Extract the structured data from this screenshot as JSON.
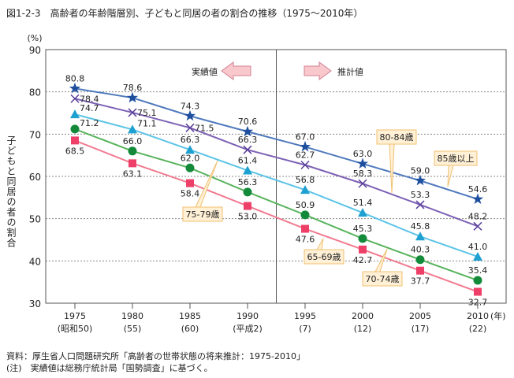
{
  "title": "図1-2-3　高齢者の年齢階層別、子どもと同居の者の割合の推移（1975～2010年）",
  "notes": {
    "source": "資料：厚生省人口問題研究所「高齢者の世帯状態の将来推計：1975-2010」",
    "note": "(注)　実績値は総務庁統計局「国勢調査」に基づく。"
  },
  "chart_data": {
    "type": "line",
    "title": "高齢者の年齢階層別、子どもと同居の者の割合の推移（1975～2010年）",
    "ylabel": "子どもと同居の者の割合",
    "yunit": "(%)",
    "xunit": "(年)",
    "ylim": [
      30,
      90
    ],
    "yticks": [
      30,
      40,
      50,
      60,
      70,
      80,
      90
    ],
    "grid": true,
    "x": [
      1975,
      1980,
      1985,
      1990,
      1995,
      2000,
      2005,
      2010
    ],
    "x_sub": [
      "(昭和50)",
      "(55)",
      "(60)",
      "(平成2)",
      "(7)",
      "(12)",
      "(17)",
      "(22)"
    ],
    "actual_label": "実績値",
    "projected_label": "推計値",
    "divider_after": 1990,
    "series": [
      {
        "name": "85歳以上",
        "marker": "star",
        "color": "#1e4f9e",
        "line": "#4f79bd",
        "values": [
          80.8,
          78.6,
          74.3,
          70.6,
          67.0,
          63.0,
          59.0,
          54.6
        ]
      },
      {
        "name": "80-84歳",
        "marker": "x",
        "color": "#5a3e9a",
        "line": "#7d62b5",
        "values": [
          78.4,
          75.1,
          71.5,
          66.3,
          62.7,
          58.3,
          53.3,
          48.2
        ]
      },
      {
        "name": "75-79歳",
        "marker": "triangle",
        "color": "#1ea0d0",
        "line": "#5cc4e6",
        "values": [
          74.7,
          71.1,
          66.3,
          61.4,
          56.8,
          51.4,
          45.8,
          41.0
        ]
      },
      {
        "name": "70-74歳",
        "marker": "circle",
        "color": "#138a3a",
        "line": "#58b35c",
        "values": [
          71.2,
          66.0,
          62.0,
          56.3,
          50.9,
          45.3,
          40.3,
          35.4
        ]
      },
      {
        "name": "65-69歳",
        "marker": "square",
        "color": "#ee3f68",
        "line": "#f27a90",
        "values": [
          68.5,
          63.1,
          58.4,
          53.0,
          47.6,
          42.7,
          37.7,
          32.7
        ]
      }
    ]
  }
}
